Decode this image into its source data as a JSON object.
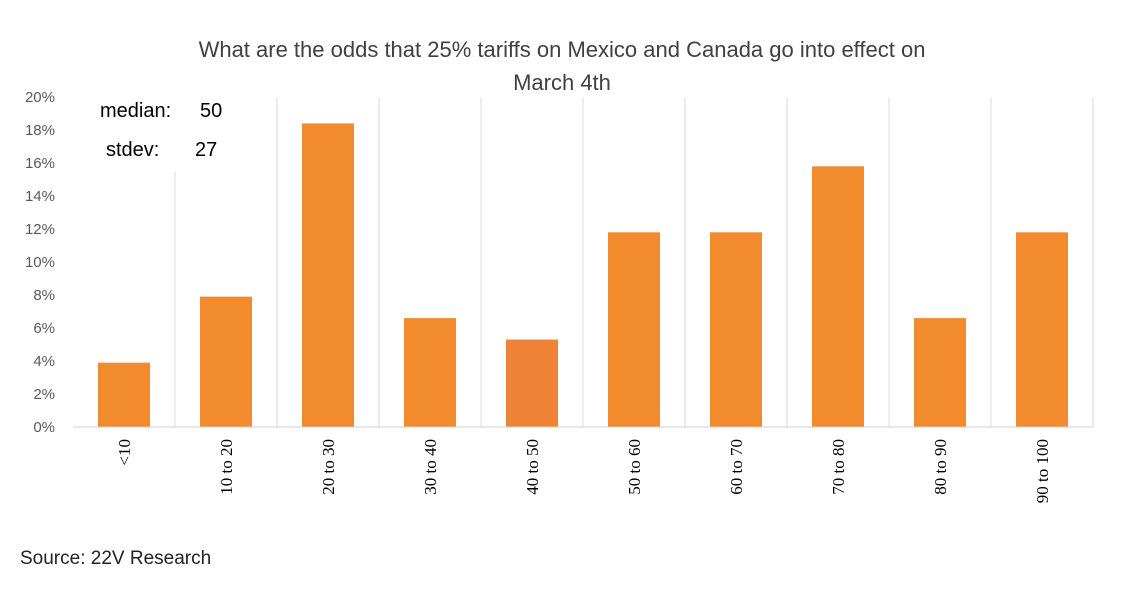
{
  "chart_data": {
    "type": "bar",
    "title_lines": [
      "What are the odds that 25% tariffs on Mexico and Canada go into effect on",
      "March 4th"
    ],
    "categories": [
      "<10",
      "10 to 20",
      "20 to 30",
      "30 to 40",
      "40 to 50",
      "50 to 60",
      "60 to 70",
      "70 to 80",
      "80 to 90",
      "90 to 100"
    ],
    "values": [
      3.9,
      7.9,
      18.4,
      6.6,
      5.3,
      11.8,
      11.8,
      15.8,
      6.6,
      11.8
    ],
    "ylim": [
      0,
      20
    ],
    "yticks": [
      "0%",
      "2%",
      "4%",
      "6%",
      "8%",
      "10%",
      "12%",
      "14%",
      "16%",
      "18%",
      "20%"
    ],
    "grid": "vertical",
    "bar_color": "#F28A2E",
    "highlight_index": 4,
    "highlight_color": "#EE8235",
    "annotations": [
      {
        "label": "median:",
        "value": "50"
      },
      {
        "label": "stdev:",
        "value": "27"
      }
    ]
  },
  "source": "Source: 22V Research"
}
